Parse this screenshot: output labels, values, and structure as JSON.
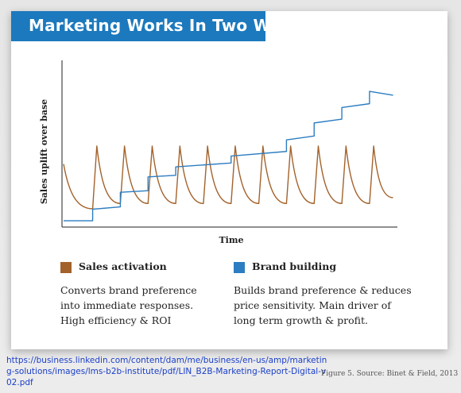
{
  "title": "Marketing Works In Two Ways",
  "chart_data": {
    "type": "line",
    "xlabel": "Time",
    "ylabel": "Sales uplift over base",
    "xlim": [
      0,
      12
    ],
    "ylim": [
      0,
      10
    ],
    "x_ticks": [],
    "y_ticks": [],
    "grid": false,
    "legend_position": "bottom",
    "series": [
      {
        "name": "Sales activation",
        "color": "#a3622b",
        "style": "sawtooth-decay",
        "points": [
          [
            0.0,
            3.78
          ],
          [
            1.05,
            0.88
          ],
          [
            1.05,
            0.88
          ],
          [
            1.2,
            4.95
          ],
          [
            2.05,
            1.22
          ],
          [
            2.05,
            1.22
          ],
          [
            2.2,
            4.95
          ],
          [
            3.05,
            1.22
          ],
          [
            3.05,
            1.22
          ],
          [
            3.2,
            4.95
          ],
          [
            4.05,
            1.22
          ],
          [
            4.05,
            1.22
          ],
          [
            4.2,
            4.95
          ],
          [
            5.05,
            1.22
          ],
          [
            5.05,
            1.22
          ],
          [
            5.2,
            4.95
          ],
          [
            6.05,
            1.22
          ],
          [
            6.05,
            1.22
          ],
          [
            6.2,
            4.95
          ],
          [
            7.05,
            1.22
          ],
          [
            7.05,
            1.22
          ],
          [
            7.2,
            4.95
          ],
          [
            8.05,
            1.22
          ],
          [
            8.05,
            1.22
          ],
          [
            8.2,
            4.95
          ],
          [
            9.05,
            1.22
          ],
          [
            9.05,
            1.22
          ],
          [
            9.2,
            4.95
          ],
          [
            10.05,
            1.22
          ],
          [
            10.05,
            1.22
          ],
          [
            10.2,
            4.95
          ],
          [
            11.05,
            1.22
          ],
          [
            11.05,
            1.22
          ],
          [
            11.2,
            4.95
          ],
          [
            11.9,
            1.6
          ]
        ]
      },
      {
        "name": "Brand building",
        "color": "#2c7dc1",
        "style": "staircase",
        "points": [
          [
            0.0,
            0.1
          ],
          [
            1.05,
            0.1
          ],
          [
            1.05,
            0.85
          ],
          [
            2.05,
            1.0
          ],
          [
            2.05,
            1.95
          ],
          [
            3.05,
            2.05
          ],
          [
            3.05,
            2.95
          ],
          [
            4.05,
            3.05
          ],
          [
            4.05,
            3.6
          ],
          [
            6.05,
            3.85
          ],
          [
            6.05,
            4.3
          ],
          [
            8.05,
            4.6
          ],
          [
            8.05,
            5.35
          ],
          [
            9.05,
            5.6
          ],
          [
            9.05,
            6.45
          ],
          [
            10.05,
            6.7
          ],
          [
            10.05,
            7.45
          ],
          [
            11.05,
            7.7
          ],
          [
            11.05,
            8.5
          ],
          [
            11.9,
            8.25
          ]
        ]
      }
    ]
  },
  "legend": [
    {
      "label": "Sales activation",
      "color": "#a3622b",
      "description_lines": [
        "Converts brand preference",
        "into immediate responses.",
        "High efficiency & ROI"
      ]
    },
    {
      "label": "Brand building",
      "color": "#2c7dc1",
      "description_lines": [
        "Builds brand preference & reduces",
        "price sensitivity. Main driver of",
        "long term growth & profit."
      ]
    }
  ],
  "source_url": "https://business.linkedin.com/content/dam/me/business/en-us/amp/marketing-solutions/images/lms-b2b-institute/pdf/LIN_B2B-Marketing-Report-Digital-v02.pdf",
  "figure_caption": "Figure 5.  Source: Binet & Field, 2013"
}
